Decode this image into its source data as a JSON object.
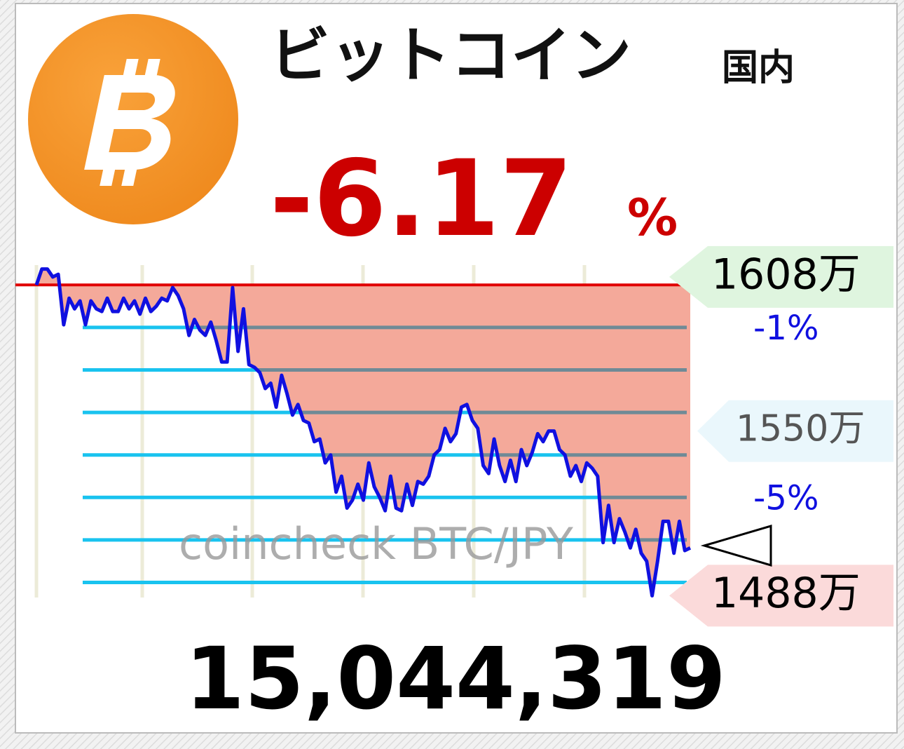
{
  "chart_data": {
    "type": "line",
    "title": "ビットコイン",
    "region": "国内",
    "change_label": "-6.17",
    "change_unit": "%",
    "price": {
      "value": 15044319,
      "label": "15,044,319"
    },
    "watermark": "coincheck BTC/JPY",
    "color": "#1010e0",
    "reference": 1605,
    "reference_color": "#e00000",
    "fill_color": "#f4a99a",
    "ylim": [
      1486,
      1613
    ],
    "price_ticks": [
      {
        "value": 1608,
        "label": "1608万"
      },
      {
        "value": 1550,
        "label": "1550万"
      },
      {
        "value": 1488,
        "label": "1488万"
      }
    ],
    "percent_ticks": [
      {
        "value": 1589,
        "label": "-1%"
      },
      {
        "value": 1525,
        "label": "-5%"
      }
    ],
    "grid_values": [
      1589,
      1573,
      1557,
      1541,
      1525,
      1509,
      1493
    ],
    "values": [
      1605,
      1611,
      1611,
      1608,
      1609,
      1590,
      1600,
      1596,
      1599,
      1590,
      1599,
      1596,
      1595,
      1600,
      1595,
      1595,
      1600,
      1596,
      1599,
      1594,
      1600,
      1595,
      1597,
      1600,
      1599,
      1604,
      1601,
      1596,
      1586,
      1592,
      1588,
      1586,
      1591,
      1584,
      1576,
      1576,
      1604,
      1580,
      1596,
      1575,
      1574,
      1572,
      1566,
      1568,
      1559,
      1571,
      1564,
      1556,
      1560,
      1554,
      1553,
      1546,
      1547,
      1538,
      1541,
      1527,
      1533,
      1521,
      1524,
      1530,
      1524,
      1538,
      1529,
      1525,
      1520,
      1533,
      1521,
      1520,
      1530,
      1522,
      1531,
      1530,
      1533,
      1541,
      1543,
      1551,
      1546,
      1549,
      1559,
      1560,
      1554,
      1551,
      1537,
      1534,
      1547,
      1537,
      1531,
      1539,
      1531,
      1543,
      1537,
      1542,
      1549,
      1546,
      1550,
      1550,
      1543,
      1541,
      1533,
      1537,
      1531,
      1538,
      1536,
      1533,
      1508,
      1522,
      1508,
      1517,
      1512,
      1506,
      1513,
      1504,
      1501,
      1488,
      1501,
      1516,
      1516,
      1504,
      1516,
      1505,
      1506
    ]
  }
}
